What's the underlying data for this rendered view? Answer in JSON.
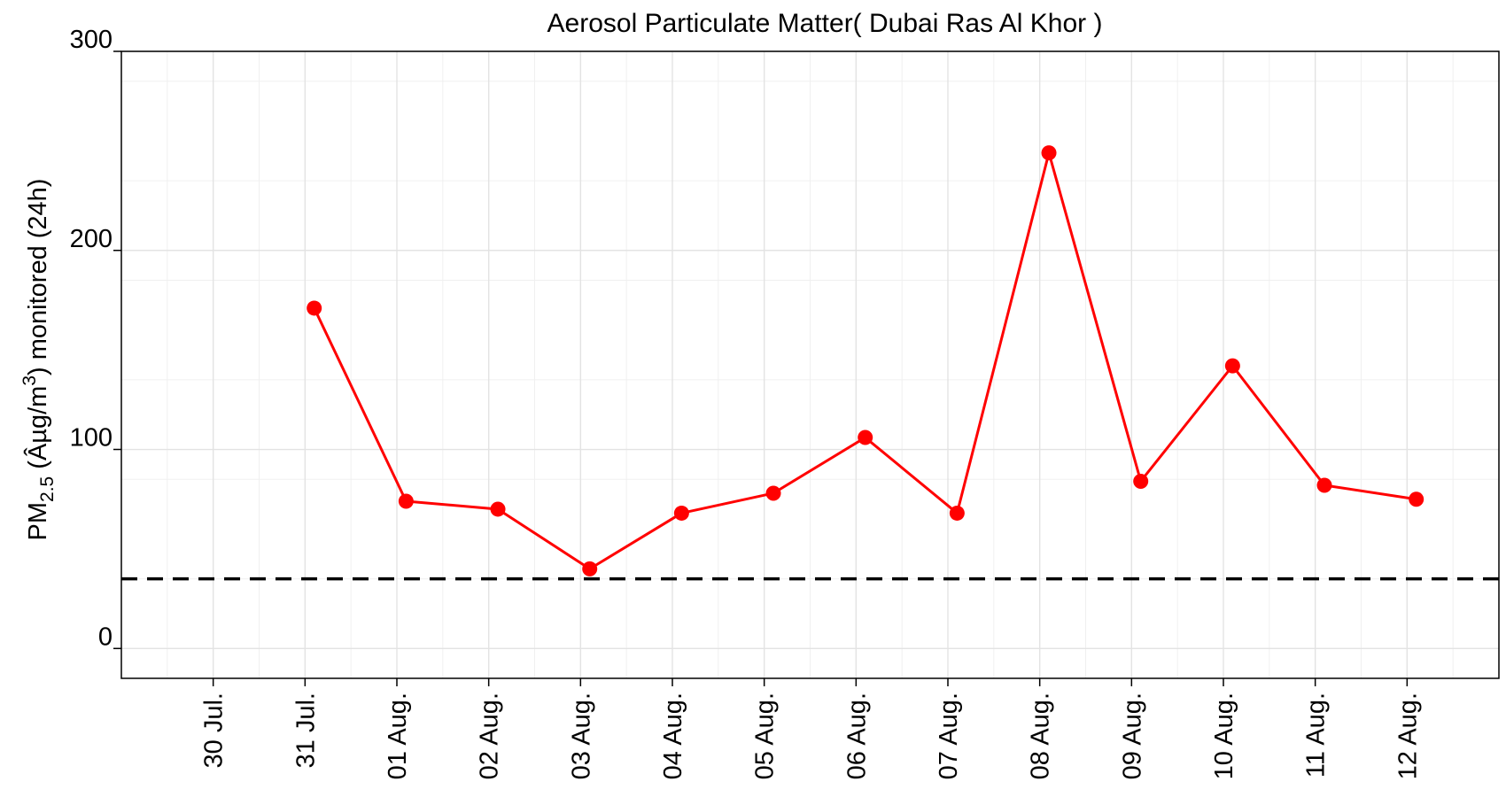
{
  "chart_data": {
    "type": "line",
    "title": "Aerosol Particulate Matter( Dubai Ras Al Khor )",
    "ylabel": {
      "prefix": "PM",
      "subscript": "2.5",
      "middle": " (Âµg/m",
      "superscript": "3",
      "suffix": ") monitored (24h)"
    },
    "xlabel": "",
    "x_ticks": [
      "30 Jul.",
      "31 Jul.",
      "01 Aug.",
      "02 Aug.",
      "03 Aug.",
      "04 Aug.",
      "05 Aug.",
      "06 Aug.",
      "07 Aug.",
      "08 Aug.",
      "09 Aug.",
      "10 Aug.",
      "11 Aug.",
      "12 Aug."
    ],
    "y_ticks": [
      0,
      100,
      200,
      300
    ],
    "xlim": [
      "2019-07-29",
      "2019-08-13"
    ],
    "ylim": [
      -15,
      300
    ],
    "grid": true,
    "reference_line": {
      "value": 35,
      "style": "dashed",
      "color": "#000000"
    },
    "series": [
      {
        "color": "#ff0000",
        "x": [
          "2019-07-31",
          "2019-08-01",
          "2019-08-02",
          "2019-08-03",
          "2019-08-04",
          "2019-08-05",
          "2019-08-06",
          "2019-08-07",
          "2019-08-08",
          "2019-08-09",
          "2019-08-10",
          "2019-08-11",
          "2019-08-12"
        ],
        "values": [
          171,
          74,
          70,
          40,
          68,
          78,
          106,
          68,
          249,
          84,
          142,
          82,
          75
        ]
      }
    ]
  }
}
